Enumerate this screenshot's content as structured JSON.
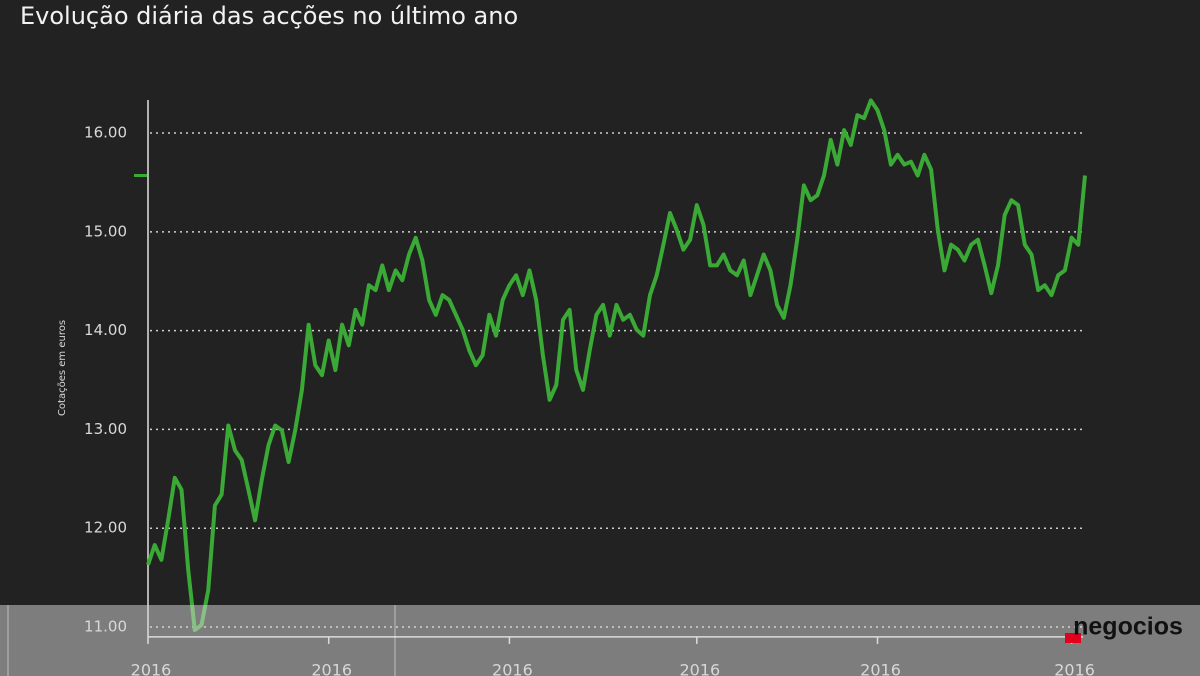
{
  "chart_data": {
    "type": "line",
    "title": "Evolução diária das acções no último ano",
    "y_label": "Cotações em euros",
    "logo": "negocios",
    "color": "#3aa935",
    "grid": true,
    "ylim": [
      10.9,
      16.4
    ],
    "yticks": [
      {
        "value": 11,
        "label": "11.00"
      },
      {
        "value": 12,
        "label": "12.00"
      },
      {
        "value": 13,
        "label": "13.00"
      },
      {
        "value": 14,
        "label": "14.00"
      },
      {
        "value": 15,
        "label": "15.00"
      },
      {
        "value": 16,
        "label": "16.00"
      }
    ],
    "categories": [
      "2016",
      null,
      null,
      null,
      null,
      null,
      null,
      null,
      null,
      null,
      null,
      null,
      null,
      null,
      null,
      null,
      null,
      null,
      null,
      null,
      null,
      null,
      null,
      null,
      null,
      null,
      null,
      "2016",
      null,
      null,
      null,
      null,
      null,
      null,
      null,
      null,
      null,
      null,
      null,
      null,
      null,
      null,
      null,
      null,
      null,
      null,
      null,
      null,
      null,
      null,
      null,
      null,
      null,
      null,
      "2016",
      null,
      null,
      null,
      null,
      null,
      null,
      null,
      null,
      null,
      null,
      null,
      null,
      null,
      null,
      null,
      null,
      null,
      null,
      null,
      null,
      null,
      null,
      null,
      null,
      null,
      null,
      null,
      "2016",
      null,
      null,
      null,
      null,
      null,
      null,
      null,
      null,
      null,
      null,
      null,
      null,
      null,
      null,
      null,
      null,
      null,
      null,
      null,
      null,
      null,
      null,
      null,
      null,
      null,
      null,
      "2016",
      null,
      null,
      null,
      null,
      null,
      null,
      null,
      null,
      null,
      null,
      null,
      null,
      null,
      null,
      null,
      null,
      null,
      null,
      null,
      null,
      null,
      null,
      null,
      null,
      null,
      null,
      null,
      null,
      "2016",
      null,
      null
    ],
    "values": [
      11.63,
      11.83,
      11.68,
      12.08,
      12.51,
      12.39,
      11.58,
      10.97,
      11.02,
      11.37,
      12.23,
      12.34,
      13.04,
      12.79,
      12.69,
      12.39,
      12.08,
      12.49,
      12.84,
      13.04,
      12.99,
      12.67,
      12.99,
      13.4,
      14.06,
      13.65,
      13.55,
      13.9,
      13.6,
      14.06,
      13.85,
      14.21,
      14.06,
      14.46,
      14.41,
      14.66,
      14.41,
      14.61,
      14.51,
      14.77,
      14.94,
      14.71,
      14.31,
      14.16,
      14.36,
      14.31,
      14.16,
      14.01,
      13.8,
      13.65,
      13.75,
      14.16,
      13.95,
      14.31,
      14.46,
      14.56,
      14.36,
      14.61,
      14.31,
      13.75,
      13.3,
      13.45,
      14.11,
      14.21,
      13.6,
      13.4,
      13.8,
      14.16,
      14.26,
      13.95,
      14.26,
      14.11,
      14.16,
      14.01,
      13.95,
      14.36,
      14.56,
      14.87,
      15.19,
      15.02,
      14.82,
      14.92,
      15.27,
      15.07,
      14.66,
      14.66,
      14.77,
      14.61,
      14.56,
      14.71,
      14.36,
      14.56,
      14.77,
      14.61,
      14.26,
      14.13,
      14.46,
      14.92,
      15.47,
      15.32,
      15.37,
      15.57,
      15.93,
      15.68,
      16.03,
      15.88,
      16.18,
      16.15,
      16.33,
      16.23,
      16.03,
      15.68,
      15.78,
      15.68,
      15.71,
      15.57,
      15.78,
      15.63,
      15.02,
      14.61,
      14.87,
      14.82,
      14.71,
      14.87,
      14.92,
      14.66,
      14.38,
      14.66,
      15.17,
      15.32,
      15.27,
      14.87,
      14.77,
      14.41,
      14.46,
      14.36,
      14.56,
      14.61,
      14.94,
      14.87,
      15.57
    ]
  }
}
